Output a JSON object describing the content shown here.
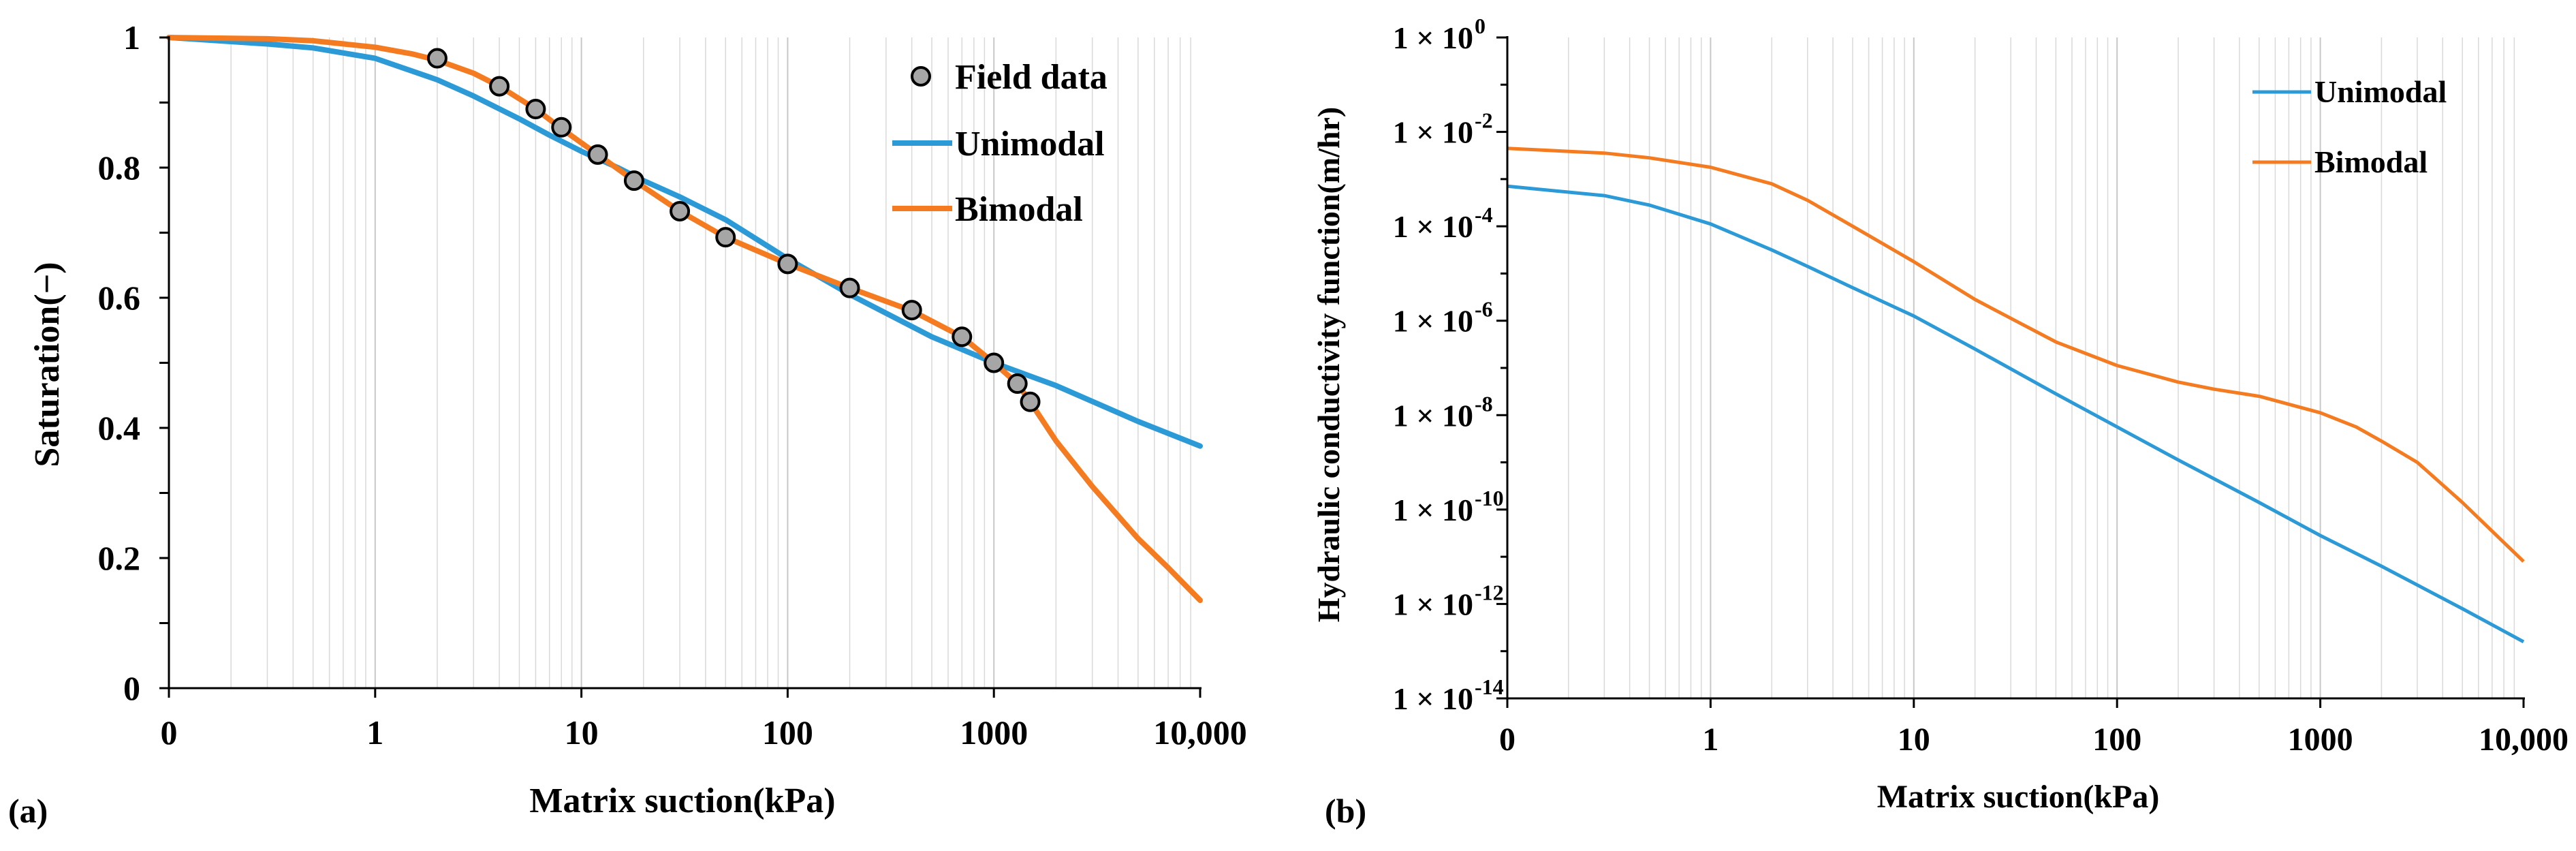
{
  "figure": {
    "panel_a_label": "(a)",
    "panel_b_label": "(b)"
  },
  "colors": {
    "unimodal": "#2b9ad6",
    "bimodal": "#f47b20",
    "marker_fill": "#a6a6a6"
  },
  "chart_data": [
    {
      "type": "line",
      "panel": "a",
      "xscale": "log",
      "xlabel": "Matrix suction(kPa)",
      "ylabel": "Saturation(−)",
      "xlim": [
        0.1,
        10000
      ],
      "ylim": [
        0,
        1
      ],
      "xticks": [
        {
          "value": 0.1,
          "label": "0"
        },
        {
          "value": 1,
          "label": "1"
        },
        {
          "value": 10,
          "label": "10"
        },
        {
          "value": 100,
          "label": "100"
        },
        {
          "value": 1000,
          "label": "1000"
        },
        {
          "value": 10000,
          "label": "10,000"
        }
      ],
      "yticks": [
        {
          "value": 0,
          "label": "0"
        },
        {
          "value": 0.2,
          "label": "0.2"
        },
        {
          "value": 0.4,
          "label": "0.4"
        },
        {
          "value": 0.6,
          "label": "0.6"
        },
        {
          "value": 0.8,
          "label": "0.8"
        },
        {
          "value": 1,
          "label": "1"
        }
      ],
      "grid": "vertical-log-minor",
      "legend_position": "top-right",
      "legend": [
        "Field data",
        "Unimodal",
        "Bimodal"
      ],
      "scatter": {
        "name": "Field data",
        "x": [
          2,
          4,
          6,
          8,
          12,
          18,
          30,
          50,
          100,
          200,
          400,
          700,
          1000,
          1300,
          1500
        ],
        "y": [
          0.968,
          0.925,
          0.89,
          0.862,
          0.82,
          0.78,
          0.733,
          0.693,
          0.652,
          0.615,
          0.581,
          0.54,
          0.5,
          0.468,
          0.44
        ]
      },
      "series": [
        {
          "name": "Unimodal",
          "x": [
            0.1,
            0.3,
            0.5,
            1,
            2,
            3,
            5,
            7,
            10,
            15,
            20,
            30,
            50,
            100,
            200,
            500,
            1000,
            2000,
            5000,
            10000
          ],
          "y": [
            1.0,
            0.99,
            0.984,
            0.968,
            0.935,
            0.91,
            0.875,
            0.85,
            0.825,
            0.8,
            0.78,
            0.755,
            0.72,
            0.66,
            0.605,
            0.54,
            0.5,
            0.465,
            0.41,
            0.372
          ]
        },
        {
          "name": "Bimodal",
          "x": [
            0.1,
            0.3,
            0.5,
            1,
            1.5,
            2,
            3,
            4,
            6,
            8,
            12,
            18,
            30,
            50,
            100,
            200,
            400,
            700,
            1000,
            1300,
            1500,
            2000,
            3000,
            5000,
            7000,
            10000
          ],
          "y": [
            1.0,
            0.998,
            0.995,
            0.985,
            0.975,
            0.965,
            0.945,
            0.925,
            0.89,
            0.86,
            0.82,
            0.78,
            0.733,
            0.693,
            0.652,
            0.615,
            0.58,
            0.54,
            0.5,
            0.468,
            0.44,
            0.38,
            0.31,
            0.23,
            0.185,
            0.135
          ]
        }
      ]
    },
    {
      "type": "line",
      "panel": "b",
      "xscale": "log",
      "yscale": "log",
      "xlabel": "Matrix suction(kPa)",
      "ylabel": "Hydraulic conductivity function(m/hr)",
      "xlim": [
        0.1,
        10000
      ],
      "ylim_exponent": [
        -14,
        0
      ],
      "xticks": [
        {
          "value": 0.1,
          "label": "0"
        },
        {
          "value": 1,
          "label": "1"
        },
        {
          "value": 10,
          "label": "10"
        },
        {
          "value": 100,
          "label": "100"
        },
        {
          "value": 1000,
          "label": "1000"
        },
        {
          "value": 10000,
          "label": "10,000"
        }
      ],
      "yticks": [
        {
          "exponent": 0,
          "base": "1 × 10",
          "sup": "0"
        },
        {
          "exponent": -2,
          "base": "1 × 10",
          "sup": "-2"
        },
        {
          "exponent": -4,
          "base": "1 × 10",
          "sup": "-4"
        },
        {
          "exponent": -6,
          "base": "1 × 10",
          "sup": "-6"
        },
        {
          "exponent": -8,
          "base": "1 × 10",
          "sup": "-8"
        },
        {
          "exponent": -10,
          "base": "1 × 10",
          "sup": "-10"
        },
        {
          "exponent": -12,
          "base": "1 × 10",
          "sup": "-12"
        },
        {
          "exponent": -14,
          "base": "1 × 10",
          "sup": "-14"
        }
      ],
      "grid": "vertical-log-minor",
      "legend_position": "top-right",
      "legend": [
        "Unimodal",
        "Bimodal"
      ],
      "series": [
        {
          "name": "Unimodal",
          "x": [
            0.1,
            0.3,
            0.5,
            1,
            2,
            3,
            5,
            10,
            20,
            50,
            100,
            200,
            500,
            1000,
            2000,
            5000,
            10000
          ],
          "log10_y": [
            -3.15,
            -3.35,
            -3.55,
            -3.95,
            -4.5,
            -4.85,
            -5.3,
            -5.9,
            -6.6,
            -7.55,
            -8.25,
            -8.95,
            -9.85,
            -10.55,
            -11.2,
            -12.1,
            -12.8
          ]
        },
        {
          "name": "Bimodal",
          "x": [
            0.1,
            0.3,
            0.5,
            1,
            2,
            3,
            5,
            10,
            20,
            30,
            50,
            100,
            200,
            300,
            500,
            1000,
            1500,
            2000,
            3000,
            5000,
            10000
          ],
          "log10_y": [
            -2.35,
            -2.45,
            -2.55,
            -2.75,
            -3.1,
            -3.45,
            -4.0,
            -4.75,
            -5.55,
            -5.95,
            -6.45,
            -6.95,
            -7.3,
            -7.45,
            -7.6,
            -7.95,
            -8.25,
            -8.55,
            -9.0,
            -9.85,
            -11.1
          ]
        }
      ]
    }
  ]
}
